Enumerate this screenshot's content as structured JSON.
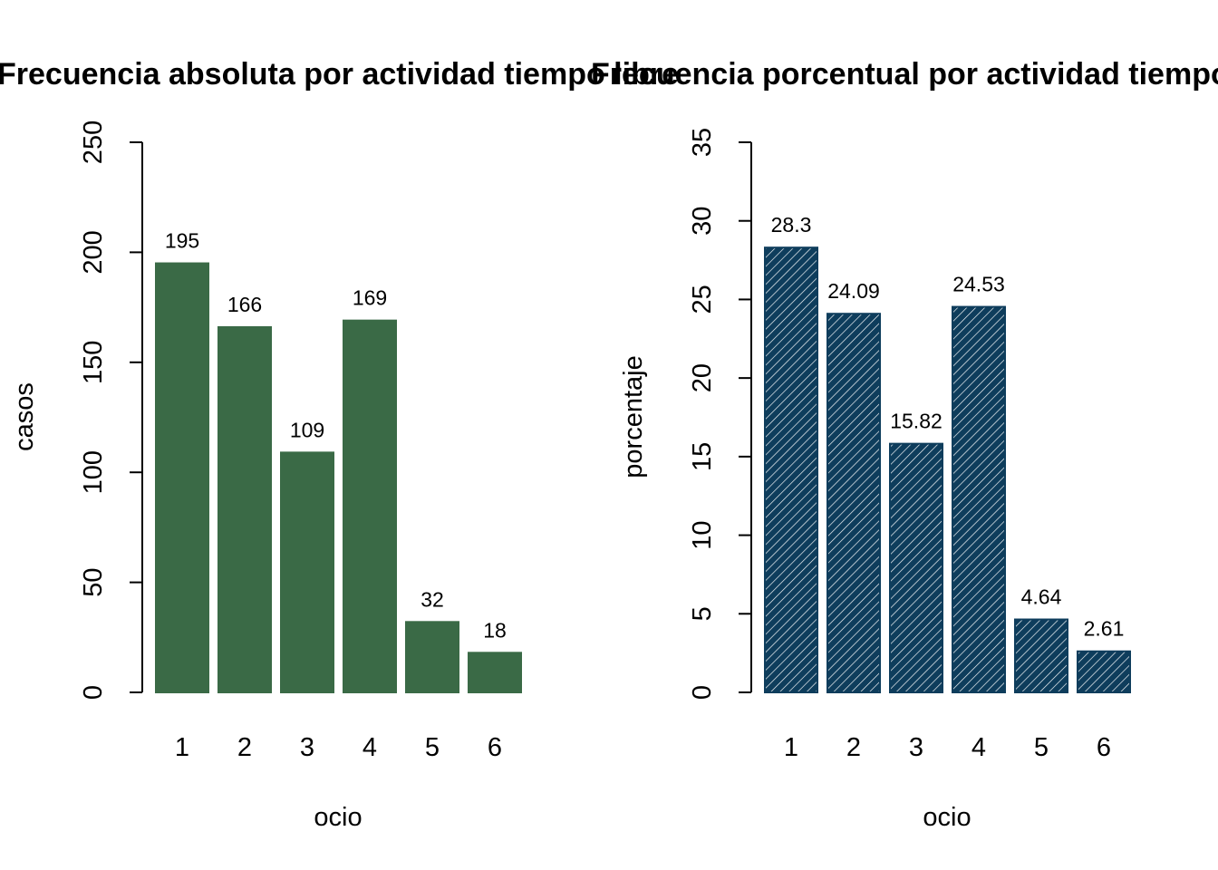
{
  "charts": [
    {
      "id": "abs",
      "colors": {
        "bar": "#3a6a46"
      },
      "pattern": "solid",
      "chart_data": {
        "type": "bar",
        "title": "Frecuencia absoluta por actividad tiempo libre",
        "xlabel": "ocio",
        "ylabel": "casos",
        "categories": [
          "1",
          "2",
          "3",
          "4",
          "5",
          "6"
        ],
        "values": [
          195,
          166,
          109,
          169,
          32,
          18
        ],
        "data_labels": [
          "195",
          "166",
          "109",
          "169",
          "32",
          "18"
        ],
        "ylim": [
          0,
          250
        ],
        "yticks": [
          0,
          50,
          100,
          150,
          200,
          250
        ],
        "grid": false,
        "legend": "none"
      }
    },
    {
      "id": "pct",
      "colors": {
        "bar": "#0e3d5c",
        "hatch": "#ffffff"
      },
      "pattern": "hatched",
      "chart_data": {
        "type": "bar",
        "title": "Frecuencia porcentual por actividad tiempo libre",
        "xlabel": "ocio",
        "ylabel": "porcentaje",
        "categories": [
          "1",
          "2",
          "3",
          "4",
          "5",
          "6"
        ],
        "values": [
          28.3,
          24.09,
          15.82,
          24.53,
          4.64,
          2.61
        ],
        "data_labels": [
          "28.3",
          "24.09",
          "15.82",
          "24.53",
          "4.64",
          "2.61"
        ],
        "ylim": [
          0,
          35
        ],
        "yticks": [
          0,
          5,
          10,
          15,
          20,
          25,
          30,
          35
        ],
        "grid": false,
        "legend": "none"
      }
    }
  ]
}
